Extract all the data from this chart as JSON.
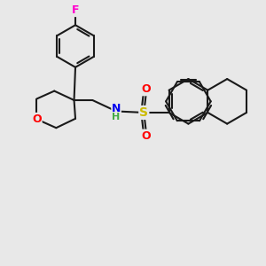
{
  "bg_color": "#e8e8e8",
  "bond_color": "#1a1a1a",
  "bond_width": 1.5,
  "atom_colors": {
    "F": "#ff00cc",
    "O": "#ff0000",
    "N": "#0000ee",
    "S": "#ccbb00",
    "H": "#44aa44"
  },
  "figsize": [
    3.0,
    3.0
  ],
  "dpi": 100
}
